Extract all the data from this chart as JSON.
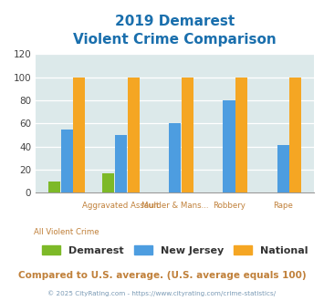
{
  "title_line1": "2019 Demarest",
  "title_line2": "Violent Crime Comparison",
  "categories": [
    "All Violent Crime",
    "Aggravated Assault",
    "Murder & Mans...",
    "Robbery",
    "Rape"
  ],
  "top_labels": [
    "",
    "Aggravated Assault",
    "Murder & Mans...",
    "Robbery",
    "Rape"
  ],
  "bottom_labels": [
    "All Violent Crime",
    "",
    "",
    "",
    "Rape"
  ],
  "demarest": [
    10,
    17,
    0,
    0,
    0
  ],
  "new_jersey": [
    55,
    50,
    60,
    80,
    41
  ],
  "national": [
    100,
    100,
    100,
    100,
    100
  ],
  "bar_colors": {
    "demarest": "#7db928",
    "new_jersey": "#4d9de0",
    "national": "#f5a623"
  },
  "ylim": [
    0,
    120
  ],
  "yticks": [
    0,
    20,
    40,
    60,
    80,
    100,
    120
  ],
  "title_color": "#1a6fad",
  "axis_label_color": "#c0803a",
  "background_color": "#dce9ea",
  "footer_text": "Compared to U.S. average. (U.S. average equals 100)",
  "footer_color": "#c0803a",
  "copyright_text": "© 2025 CityRating.com - https://www.cityrating.com/crime-statistics/",
  "copyright_color": "#7a9ab5",
  "legend_labels": [
    "Demarest",
    "New Jersey",
    "National"
  ]
}
